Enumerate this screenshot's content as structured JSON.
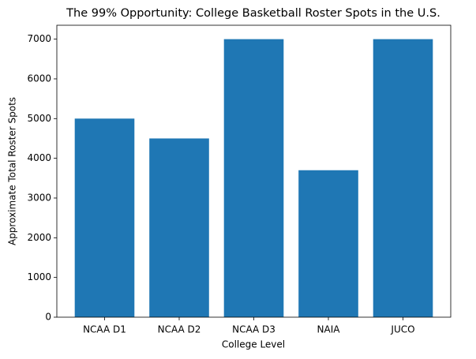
{
  "chart_data": {
    "type": "bar",
    "title": "The 99% Opportunity: College Basketball Roster Spots in the U.S.",
    "x_label": "College Level",
    "y_label": "Approximate Total Roster Spots",
    "categories": [
      "NCAA D1",
      "NCAA D2",
      "NCAA D3",
      "NAIA",
      "JUCO"
    ],
    "values": [
      5000,
      4500,
      7000,
      3700,
      7000
    ],
    "color": "#1f77b4",
    "ylim": [
      0,
      7350
    ],
    "yticks": [
      0,
      1000,
      2000,
      3000,
      4000,
      5000,
      6000,
      7000
    ],
    "grid": false
  }
}
